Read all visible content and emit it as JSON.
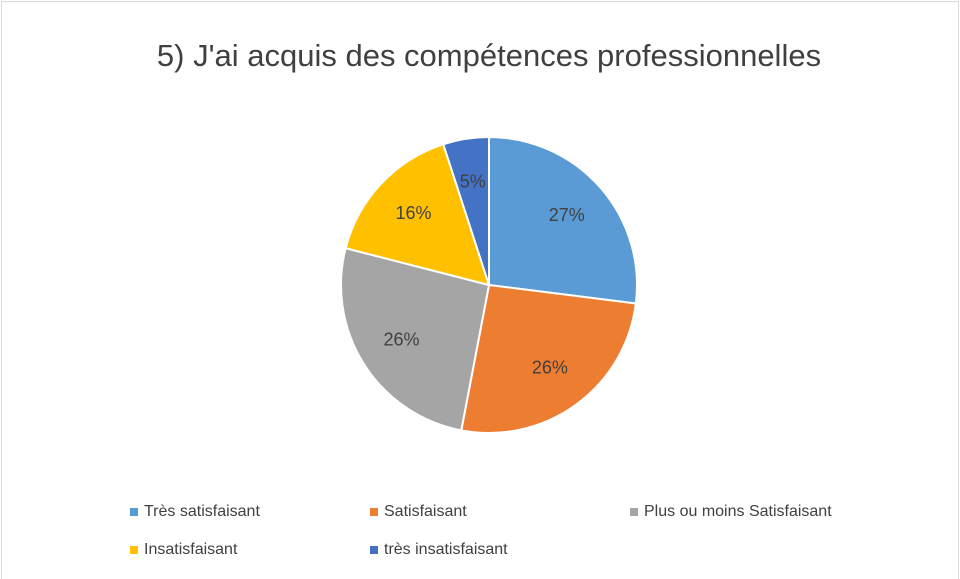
{
  "chart_data": {
    "type": "pie",
    "title": "5) J'ai acquis des compétences professionnelles",
    "categories": [
      "Très satisfaisant",
      "Satisfaisant",
      "Plus ou moins Satisfaisant",
      "Insatisfaisant",
      "très insatisfaisant"
    ],
    "values": [
      27,
      26,
      26,
      16,
      5
    ],
    "value_labels": [
      "27%",
      "26%",
      "26%",
      "16%",
      "5%"
    ],
    "colors": [
      "#5b9bd5",
      "#ed7d31",
      "#a5a5a5",
      "#ffc000",
      "#4472c4"
    ],
    "legend": "bottom"
  }
}
